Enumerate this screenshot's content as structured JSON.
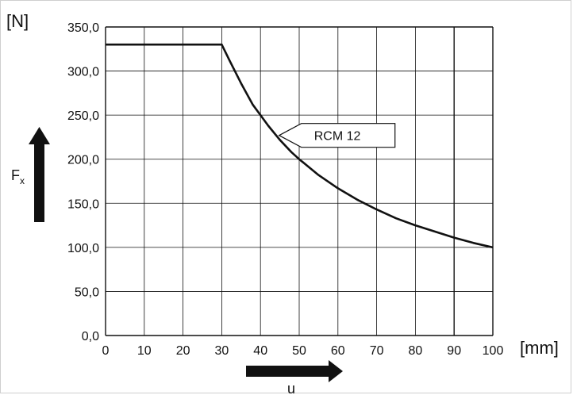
{
  "chart_data": {
    "type": "line",
    "y_unit": "[N]",
    "x_unit": "[mm]",
    "y_axis_label": "F",
    "y_axis_label_sub": "x",
    "x_axis_label": "u",
    "x_ticks": [
      "0",
      "10",
      "20",
      "30",
      "40",
      "50",
      "60",
      "70",
      "80",
      "90",
      "100"
    ],
    "y_ticks": [
      "0,0",
      "50,0",
      "100,0",
      "150,0",
      "200,0",
      "250,0",
      "300,0",
      "350,0"
    ],
    "xlim": [
      0,
      100
    ],
    "ylim": [
      0,
      350
    ],
    "grid": true,
    "annotation": {
      "text": "RCM 12",
      "points_to_x": 44,
      "points_to_y": 227
    },
    "series": [
      {
        "name": "RCM 12",
        "x": [
          0,
          30,
          32,
          35,
          38,
          40,
          42,
          45,
          48,
          50,
          55,
          60,
          65,
          70,
          75,
          80,
          85,
          90,
          95,
          100
        ],
        "y": [
          330,
          330,
          312,
          286,
          262,
          250,
          238,
          222,
          208,
          200,
          182,
          167,
          154,
          143,
          133,
          125,
          118,
          111,
          105,
          100
        ]
      }
    ]
  }
}
